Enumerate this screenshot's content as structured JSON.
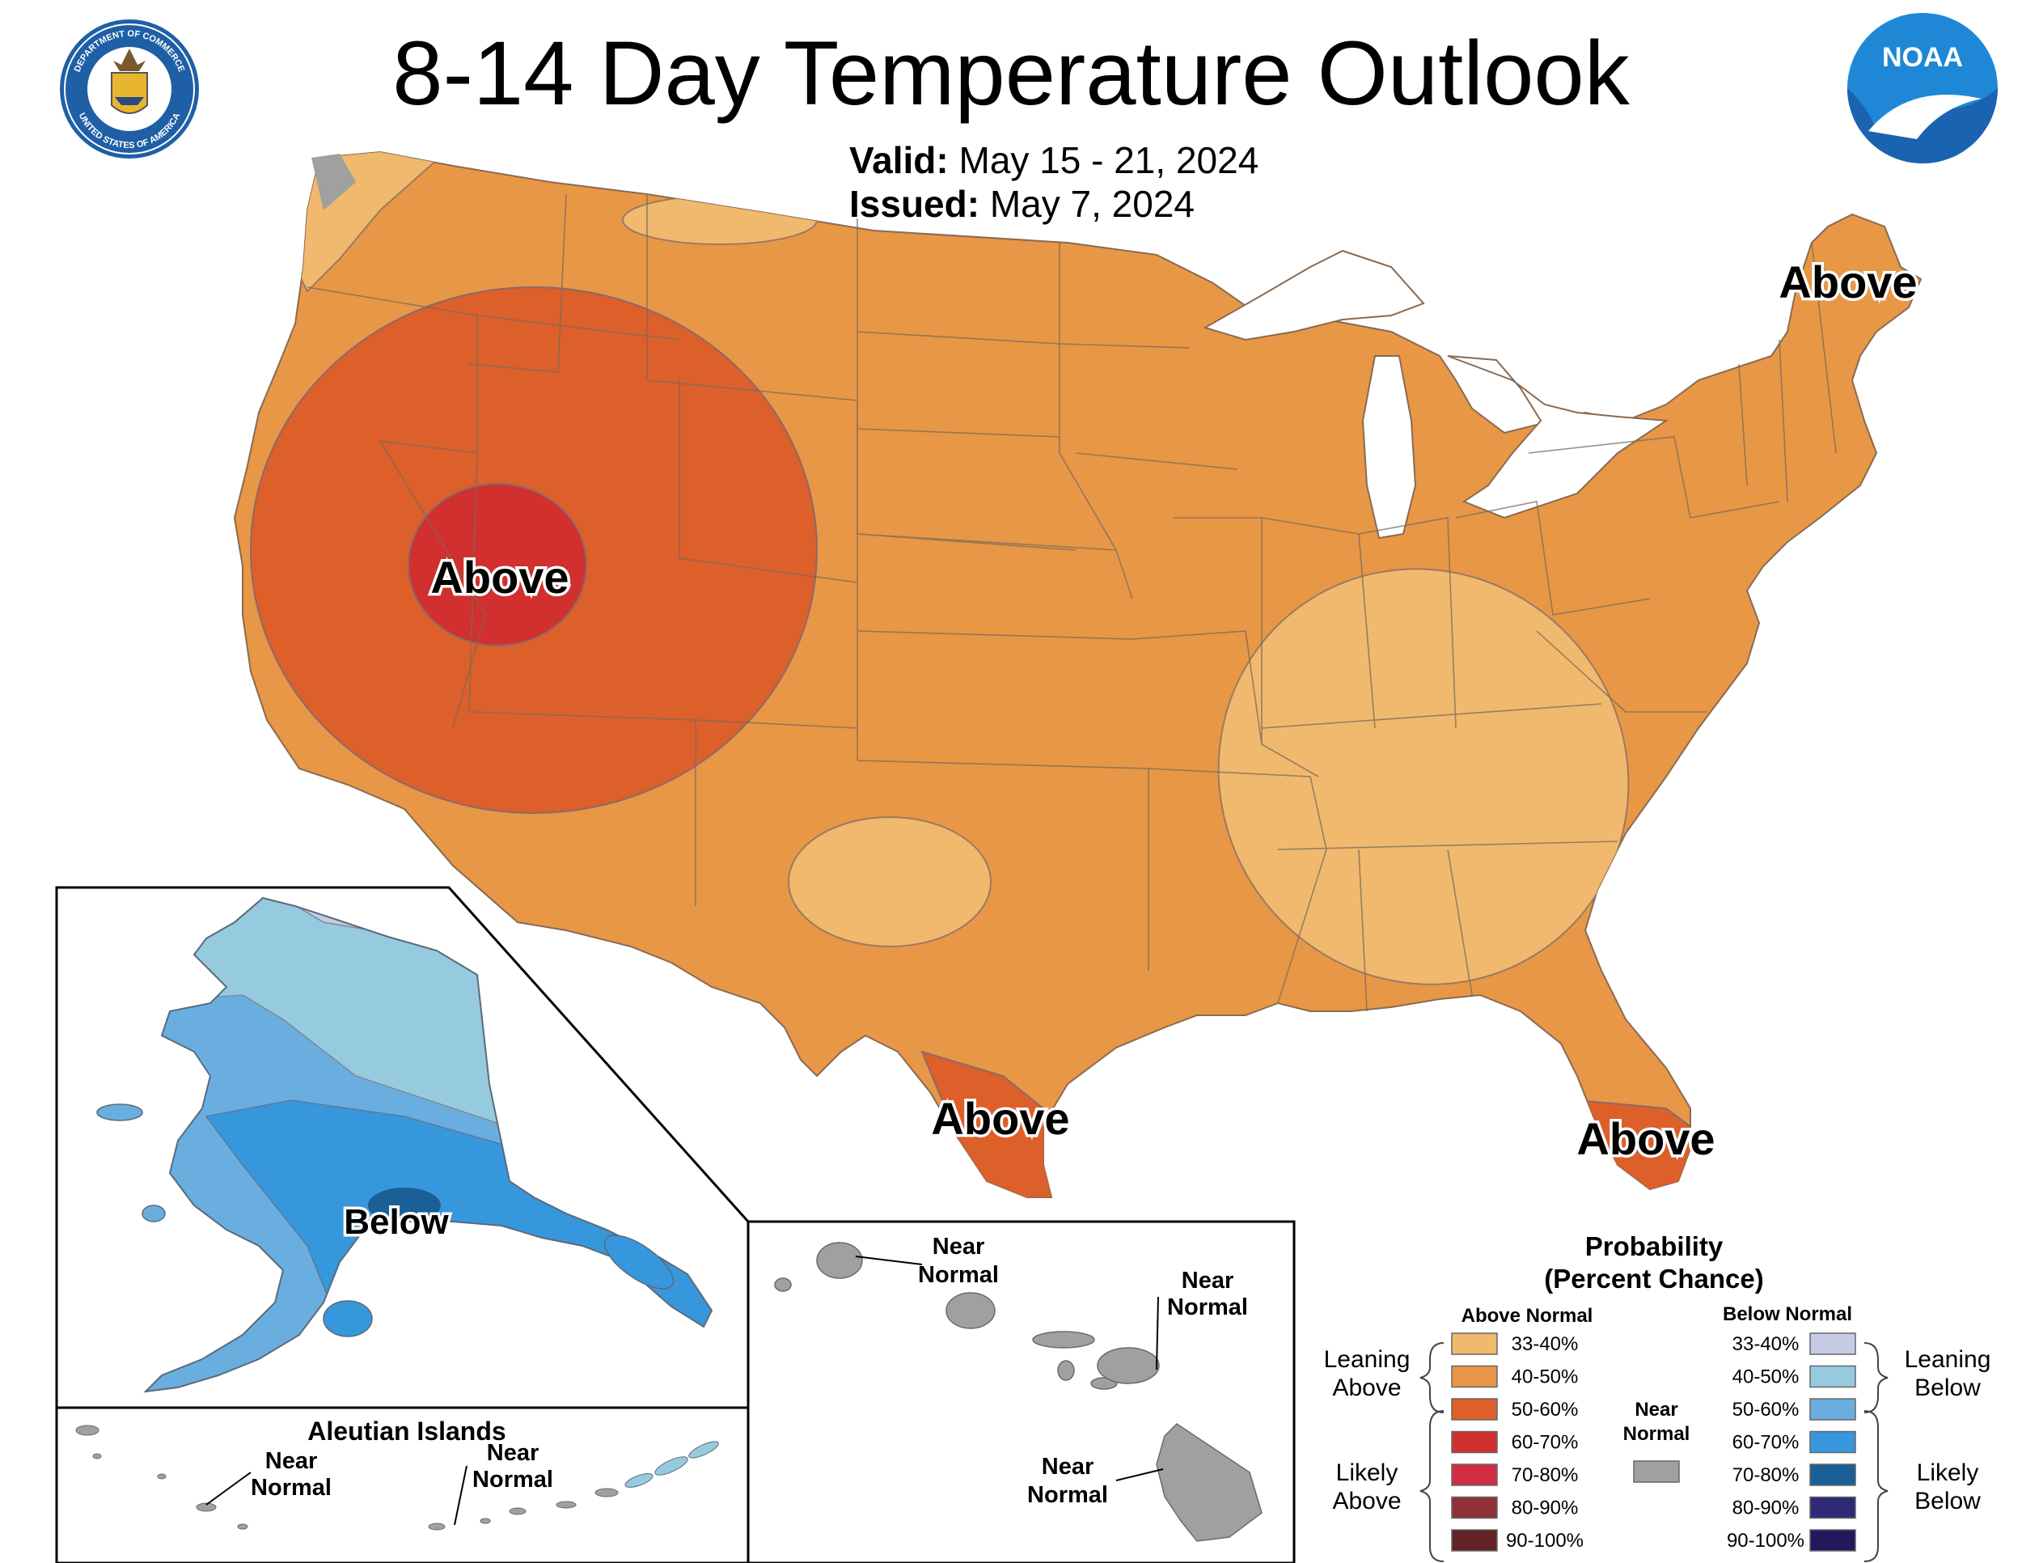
{
  "header": {
    "title": "8-14 Day Temperature Outlook",
    "valid_label": "Valid:",
    "valid_value": "May 15 - 21, 2024",
    "issued_label": "Issued:",
    "issued_value": "May 7, 2024",
    "doc_seal_text_top": "DEPARTMENT OF COMMERCE",
    "doc_seal_text_bottom": "UNITED STATES OF AMERICA",
    "noaa_logo_text": "NOAA"
  },
  "map_labels": {
    "west_above": "Above",
    "northeast_above": "Above",
    "texas_above": "Above",
    "florida_above": "Above",
    "alaska_below": "Below"
  },
  "hawaii": {
    "kauai_l1": "Near",
    "kauai_l2": "Normal",
    "maui_l1": "Near",
    "maui_l2": "Normal",
    "bigisland_l1": "Near",
    "bigisland_l2": "Normal"
  },
  "aleutians": {
    "title": "Aleutian Islands",
    "west_l1": "Near",
    "west_l2": "Normal",
    "east_l1": "Near",
    "east_l2": "Normal"
  },
  "legend": {
    "title_l1": "Probability",
    "title_l2": "(Percent Chance)",
    "above_header": "Above Normal",
    "below_header": "Below Normal",
    "near_l1": "Near",
    "near_l2": "Normal",
    "leaning_above_l1": "Leaning",
    "leaning_above_l2": "Above",
    "likely_above_l1": "Likely",
    "likely_above_l2": "Above",
    "leaning_below_l1": "Leaning",
    "leaning_below_l2": "Below",
    "likely_below_l1": "Likely",
    "likely_below_l2": "Below",
    "near_color": "#a0a0a0",
    "above": [
      {
        "range": "33-40%",
        "color": "#f0b96e"
      },
      {
        "range": "40-50%",
        "color": "#e89747"
      },
      {
        "range": "50-60%",
        "color": "#dd5f2a"
      },
      {
        "range": "60-70%",
        "color": "#d22f2f"
      },
      {
        "range": "70-80%",
        "color": "#d12d44"
      },
      {
        "range": "80-90%",
        "color": "#8f3138"
      },
      {
        "range": "90-100%",
        "color": "#622326"
      }
    ],
    "below": [
      {
        "range": "33-40%",
        "color": "#c7cbe5"
      },
      {
        "range": "40-50%",
        "color": "#96cadf"
      },
      {
        "range": "50-60%",
        "color": "#6aaee0"
      },
      {
        "range": "60-70%",
        "color": "#3797dc"
      },
      {
        "range": "70-80%",
        "color": "#1a5f96"
      },
      {
        "range": "80-90%",
        "color": "#2f2a74"
      },
      {
        "range": "90-100%",
        "color": "#24185d"
      }
    ]
  }
}
